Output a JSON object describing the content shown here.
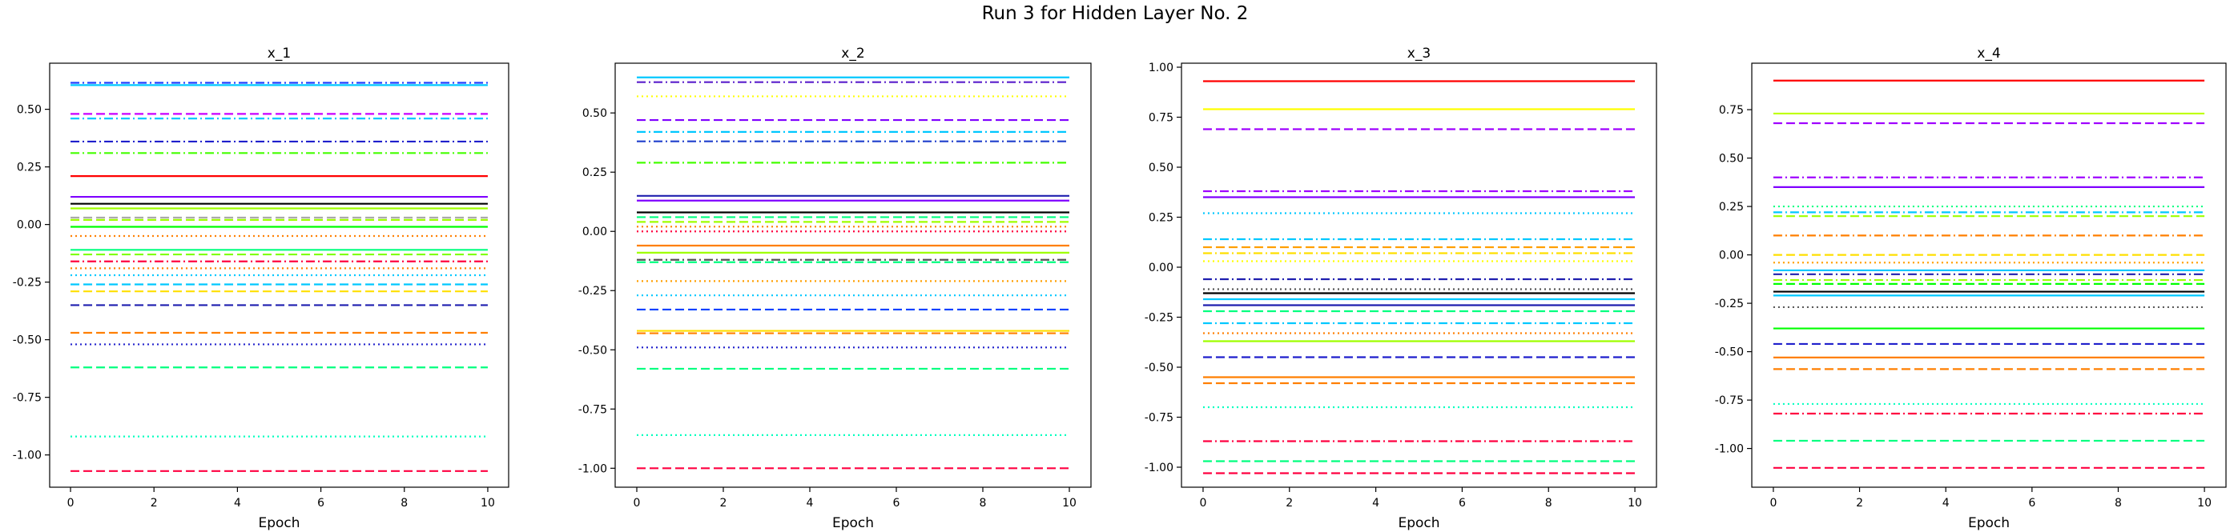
{
  "figure": {
    "suptitle": "Run 3 for Hidden Layer No. 2"
  },
  "chart_data": [
    {
      "type": "line",
      "title": "x_1",
      "xlabel": "Epoch",
      "ylabel": "",
      "x": [
        0,
        1,
        2,
        3,
        4,
        5,
        6,
        7,
        8,
        9,
        10
      ],
      "xticks": [
        "0",
        "2",
        "4",
        "6",
        "8",
        "10"
      ],
      "yticks": [
        "-1.00",
        "-0.75",
        "-0.50",
        "-0.25",
        "0.00",
        "0.25",
        "0.50"
      ],
      "xlim": [
        -0.5,
        10.5
      ],
      "ylim": [
        -1.14,
        0.7
      ],
      "grid": false,
      "series": [
        {
          "value": 0.615,
          "color": "#1f3fff",
          "style": "dashdot"
        },
        {
          "value": 0.605,
          "color": "#00c8ff",
          "style": "solid"
        },
        {
          "value": 0.48,
          "color": "#c800ff",
          "style": "dashed"
        },
        {
          "value": 0.46,
          "color": "#00c8ff",
          "style": "dashdot"
        },
        {
          "value": 0.36,
          "color": "#1f1fcc",
          "style": "dashdot"
        },
        {
          "value": 0.31,
          "color": "#44ff00",
          "style": "dashdot"
        },
        {
          "value": 0.21,
          "color": "#ff0000",
          "style": "solid"
        },
        {
          "value": 0.12,
          "color": "#7f00ff",
          "style": "solid"
        },
        {
          "value": 0.09,
          "color": "#000000",
          "style": "solid"
        },
        {
          "value": 0.07,
          "color": "#9fff00",
          "style": "solid"
        },
        {
          "value": 0.03,
          "color": "#aaaaaa",
          "style": "dashed"
        },
        {
          "value": 0.02,
          "color": "#9fff00",
          "style": "dashed"
        },
        {
          "value": -0.01,
          "color": "#00ff00",
          "style": "solid"
        },
        {
          "value": -0.05,
          "color": "#ff7f00",
          "style": "dotted"
        },
        {
          "value": -0.11,
          "color": "#00ff7f",
          "style": "solid"
        },
        {
          "value": -0.13,
          "color": "#7fff00",
          "style": "dashed"
        },
        {
          "value": -0.16,
          "color": "#ff0040",
          "style": "dashdot"
        },
        {
          "value": -0.19,
          "color": "#ff7f00",
          "style": "dotted"
        },
        {
          "value": -0.22,
          "color": "#00c8ff",
          "style": "dotted"
        },
        {
          "value": -0.26,
          "color": "#00c8ff",
          "style": "dashed"
        },
        {
          "value": -0.29,
          "color": "#ffdf00",
          "style": "dashed"
        },
        {
          "value": -0.35,
          "color": "#1f1faf",
          "style": "dashed"
        },
        {
          "value": -0.47,
          "color": "#ff7f00",
          "style": "dashed"
        },
        {
          "value": -0.52,
          "color": "#1f1fcc",
          "style": "dotted"
        },
        {
          "value": -0.62,
          "color": "#00ff7f",
          "style": "dashed"
        },
        {
          "value": -0.92,
          "color": "#00ffbf",
          "style": "dotted"
        },
        {
          "value": -1.07,
          "color": "#ff0040",
          "style": "dashed"
        }
      ]
    },
    {
      "type": "line",
      "title": "x_2",
      "xlabel": "Epoch",
      "ylabel": "",
      "x": [
        0,
        1,
        2,
        3,
        4,
        5,
        6,
        7,
        8,
        9,
        10
      ],
      "xticks": [
        "0",
        "2",
        "4",
        "6",
        "8",
        "10"
      ],
      "yticks": [
        "-1.00",
        "-0.75",
        "-0.50",
        "-0.25",
        "0.00",
        "0.25",
        "0.50"
      ],
      "xlim": [
        -0.5,
        10.5
      ],
      "ylim": [
        -1.08,
        0.71
      ],
      "grid": false,
      "series": [
        {
          "value": 0.65,
          "color": "#00c8ff",
          "style": "solid"
        },
        {
          "value": 0.63,
          "color": "#5a1fcc",
          "style": "dashdot"
        },
        {
          "value": 0.57,
          "color": "#ffff00",
          "style": "dotted"
        },
        {
          "value": 0.47,
          "color": "#7f00ff",
          "style": "dashed"
        },
        {
          "value": 0.42,
          "color": "#00c8ff",
          "style": "dashdot"
        },
        {
          "value": 0.38,
          "color": "#1f3fcc",
          "style": "dashdot"
        },
        {
          "value": 0.29,
          "color": "#44ff00",
          "style": "dashdot"
        },
        {
          "value": 0.15,
          "color": "#1f1faf",
          "style": "solid"
        },
        {
          "value": 0.13,
          "color": "#7f00ff",
          "style": "solid"
        },
        {
          "value": 0.08,
          "color": "#000000",
          "style": "solid"
        },
        {
          "value": 0.06,
          "color": "#00ff7f",
          "style": "dashed"
        },
        {
          "value": 0.04,
          "color": "#9fff00",
          "style": "dashed"
        },
        {
          "value": 0.02,
          "color": "#ff7f00",
          "style": "dotted"
        },
        {
          "value": 0.0,
          "color": "#ff0040",
          "style": "dotted"
        },
        {
          "value": -0.06,
          "color": "#ff7f00",
          "style": "solid"
        },
        {
          "value": -0.09,
          "color": "#9fff00",
          "style": "solid"
        },
        {
          "value": -0.12,
          "color": "#555555",
          "style": "dashdot"
        },
        {
          "value": -0.13,
          "color": "#00ff7f",
          "style": "dashed"
        },
        {
          "value": -0.21,
          "color": "#ff9f00",
          "style": "dotted"
        },
        {
          "value": -0.27,
          "color": "#00c8ff",
          "style": "dotted"
        },
        {
          "value": -0.33,
          "color": "#0040ff",
          "style": "dashed"
        },
        {
          "value": -0.42,
          "color": "#ffdf00",
          "style": "solid"
        },
        {
          "value": -0.43,
          "color": "#ff7f00",
          "style": "dashed"
        },
        {
          "value": -0.49,
          "color": "#1f1fcc",
          "style": "dotted"
        },
        {
          "value": -0.58,
          "color": "#00ff7f",
          "style": "dashed"
        },
        {
          "value": -0.86,
          "color": "#00ffbf",
          "style": "dotted"
        },
        {
          "value": -1.0,
          "color": "#ff0040",
          "style": "dashed"
        }
      ]
    },
    {
      "type": "line",
      "title": "x_3",
      "xlabel": "Epoch",
      "ylabel": "",
      "x": [
        0,
        1,
        2,
        3,
        4,
        5,
        6,
        7,
        8,
        9,
        10
      ],
      "xticks": [
        "0",
        "2",
        "4",
        "6",
        "8",
        "10"
      ],
      "yticks": [
        "-1.00",
        "-0.75",
        "-0.50",
        "-0.25",
        "0.00",
        "0.25",
        "0.50",
        "0.75",
        "1.00"
      ],
      "xlim": [
        -0.5,
        10.5
      ],
      "ylim": [
        -1.1,
        1.02
      ],
      "grid": false,
      "series": [
        {
          "value": 0.93,
          "color": "#ff0000",
          "style": "solid"
        },
        {
          "value": 0.79,
          "color": "#ffff00",
          "style": "solid"
        },
        {
          "value": 0.69,
          "color": "#9f00ff",
          "style": "dashed"
        },
        {
          "value": 0.38,
          "color": "#9f00ff",
          "style": "dashdot"
        },
        {
          "value": 0.35,
          "color": "#7f00ff",
          "style": "solid"
        },
        {
          "value": 0.27,
          "color": "#00c8ff",
          "style": "dotted"
        },
        {
          "value": 0.14,
          "color": "#00c8ff",
          "style": "dashdot"
        },
        {
          "value": 0.1,
          "color": "#ff9f00",
          "style": "dashed"
        },
        {
          "value": 0.07,
          "color": "#ffdf00",
          "style": "dashdot"
        },
        {
          "value": 0.03,
          "color": "#ffff00",
          "style": "dotted"
        },
        {
          "value": -0.06,
          "color": "#1f1faf",
          "style": "dashdot"
        },
        {
          "value": -0.11,
          "color": "#555555",
          "style": "dotted"
        },
        {
          "value": -0.13,
          "color": "#000000",
          "style": "solid"
        },
        {
          "value": -0.16,
          "color": "#00c8ff",
          "style": "solid"
        },
        {
          "value": -0.19,
          "color": "#1f1faf",
          "style": "solid"
        },
        {
          "value": -0.22,
          "color": "#00ff7f",
          "style": "dashed"
        },
        {
          "value": -0.28,
          "color": "#00c8ff",
          "style": "dashdot"
        },
        {
          "value": -0.33,
          "color": "#ff7f00",
          "style": "dotted"
        },
        {
          "value": -0.37,
          "color": "#9fff00",
          "style": "solid"
        },
        {
          "value": -0.45,
          "color": "#1f1fcc",
          "style": "dashed"
        },
        {
          "value": -0.55,
          "color": "#ff7f00",
          "style": "solid"
        },
        {
          "value": -0.58,
          "color": "#ff7f00",
          "style": "dashed"
        },
        {
          "value": -0.7,
          "color": "#00ffbf",
          "style": "dotted"
        },
        {
          "value": -0.87,
          "color": "#ff0040",
          "style": "dashdot"
        },
        {
          "value": -0.97,
          "color": "#00ff7f",
          "style": "dashed"
        },
        {
          "value": -1.03,
          "color": "#ff0040",
          "style": "dashed"
        }
      ]
    },
    {
      "type": "line",
      "title": "x_4",
      "xlabel": "Epoch",
      "ylabel": "",
      "x": [
        0,
        1,
        2,
        3,
        4,
        5,
        6,
        7,
        8,
        9,
        10
      ],
      "xticks": [
        "0",
        "2",
        "4",
        "6",
        "8",
        "10"
      ],
      "yticks": [
        "-1.00",
        "-0.75",
        "-0.50",
        "-0.25",
        "0.00",
        "0.25",
        "0.50",
        "0.75"
      ],
      "xlim": [
        -0.5,
        10.5
      ],
      "ylim": [
        -1.2,
        0.99
      ],
      "grid": false,
      "series": [
        {
          "value": 0.9,
          "color": "#ff0000",
          "style": "solid"
        },
        {
          "value": 0.73,
          "color": "#bfff00",
          "style": "solid"
        },
        {
          "value": 0.68,
          "color": "#9f00ff",
          "style": "dashed"
        },
        {
          "value": 0.4,
          "color": "#9f00ff",
          "style": "dashdot"
        },
        {
          "value": 0.35,
          "color": "#7f00ff",
          "style": "solid"
        },
        {
          "value": 0.25,
          "color": "#00ff7f",
          "style": "dotted"
        },
        {
          "value": 0.22,
          "color": "#00c8ff",
          "style": "dashdot"
        },
        {
          "value": 0.2,
          "color": "#9fff00",
          "style": "dashed"
        },
        {
          "value": 0.1,
          "color": "#ff7f00",
          "style": "dashdot"
        },
        {
          "value": 0.0,
          "color": "#ffdf00",
          "style": "dashed"
        },
        {
          "value": -0.04,
          "color": "#ff9f00",
          "style": "dotted"
        },
        {
          "value": -0.08,
          "color": "#00c8ff",
          "style": "solid"
        },
        {
          "value": -0.1,
          "color": "#1f1faf",
          "style": "dashdot"
        },
        {
          "value": -0.13,
          "color": "#9fff00",
          "style": "dashdot"
        },
        {
          "value": -0.15,
          "color": "#00ff00",
          "style": "dashed"
        },
        {
          "value": -0.19,
          "color": "#000000",
          "style": "solid"
        },
        {
          "value": -0.21,
          "color": "#00c8ff",
          "style": "solid"
        },
        {
          "value": -0.27,
          "color": "#555555",
          "style": "dotted"
        },
        {
          "value": -0.38,
          "color": "#00ff00",
          "style": "solid"
        },
        {
          "value": -0.46,
          "color": "#1f1fcc",
          "style": "dashed"
        },
        {
          "value": -0.53,
          "color": "#ff7f00",
          "style": "solid"
        },
        {
          "value": -0.59,
          "color": "#ff7f00",
          "style": "dashed"
        },
        {
          "value": -0.77,
          "color": "#00ffbf",
          "style": "dotted"
        },
        {
          "value": -0.82,
          "color": "#ff0040",
          "style": "dashdot"
        },
        {
          "value": -0.96,
          "color": "#00ff7f",
          "style": "dashed"
        },
        {
          "value": -1.1,
          "color": "#ff0040",
          "style": "dashed"
        }
      ]
    }
  ]
}
